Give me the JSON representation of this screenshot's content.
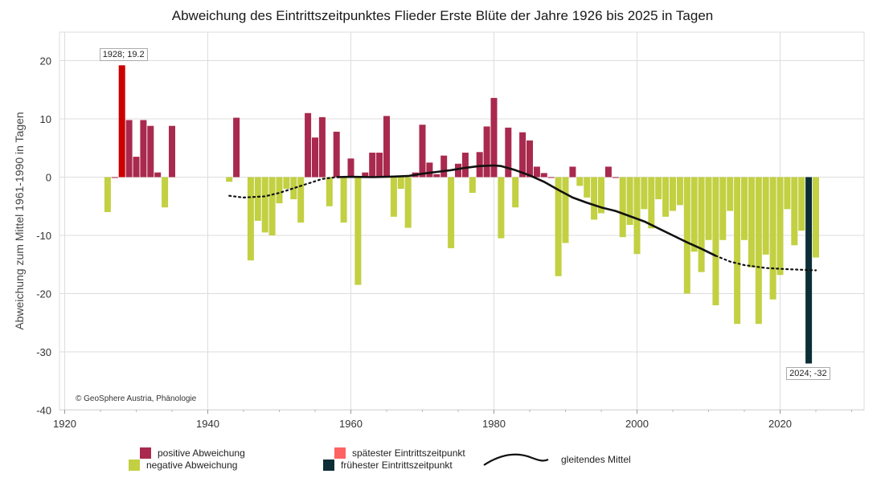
{
  "chart_data": {
    "type": "bar",
    "title": "Abweichung des Eintrittszeitpunktes Flieder Erste Blüte der Jahre 1926 bis 2025 in Tagen",
    "ylabel": "Abweichung zum Mittel 1961-1990 in Tagen",
    "xlabel": "",
    "xlim": [
      1920,
      2030
    ],
    "ylim": [
      -40,
      25
    ],
    "x_ticks": [
      "1920",
      "1940",
      "1960",
      "1980",
      "2000",
      "2020"
    ],
    "y_ticks": [
      "20",
      "10",
      "0",
      "-10",
      "-20",
      "-30",
      "-40"
    ],
    "grid": true,
    "bars": [
      [
        1926,
        -6
      ],
      [
        1927,
        0
      ],
      [
        1928,
        19.2
      ],
      [
        1929,
        9.8
      ],
      [
        1930,
        3.5
      ],
      [
        1931,
        9.8
      ],
      [
        1932,
        8.8
      ],
      [
        1933,
        0.8
      ],
      [
        1934,
        -5.2
      ],
      [
        1935,
        8.8
      ],
      [
        1943,
        -0.8
      ],
      [
        1944,
        10.2
      ],
      [
        1946,
        -14.3
      ],
      [
        1947,
        -7.5
      ],
      [
        1948,
        -9.5
      ],
      [
        1949,
        -10
      ],
      [
        1950,
        -4.5
      ],
      [
        1951,
        -2
      ],
      [
        1952,
        -3.8
      ],
      [
        1953,
        -7.8
      ],
      [
        1954,
        11
      ],
      [
        1955,
        6.8
      ],
      [
        1956,
        10.3
      ],
      [
        1957,
        -5
      ],
      [
        1958,
        7.8
      ],
      [
        1959,
        -7.8
      ],
      [
        1960,
        3.2
      ],
      [
        1961,
        -18.5
      ],
      [
        1962,
        0.8
      ],
      [
        1963,
        4.2
      ],
      [
        1964,
        4.2
      ],
      [
        1965,
        10.5
      ],
      [
        1966,
        -6.8
      ],
      [
        1967,
        -2
      ],
      [
        1968,
        -8.7
      ],
      [
        1969,
        0.8
      ],
      [
        1970,
        9
      ],
      [
        1971,
        2.5
      ],
      [
        1972,
        0.5
      ],
      [
        1973,
        3.7
      ],
      [
        1974,
        -12.2
      ],
      [
        1975,
        2.3
      ],
      [
        1976,
        4.2
      ],
      [
        1977,
        -2.7
      ],
      [
        1978,
        4.3
      ],
      [
        1979,
        8.7
      ],
      [
        1980,
        13.6
      ],
      [
        1981,
        -10.5
      ],
      [
        1982,
        8.5
      ],
      [
        1983,
        -5.2
      ],
      [
        1984,
        7.7
      ],
      [
        1985,
        6.3
      ],
      [
        1986,
        1.8
      ],
      [
        1987,
        0.7
      ],
      [
        1988,
        0
      ],
      [
        1989,
        -17
      ],
      [
        1990,
        -11.3
      ],
      [
        1991,
        1.8
      ],
      [
        1992,
        -1.5
      ],
      [
        1993,
        -3.5
      ],
      [
        1994,
        -7.3
      ],
      [
        1995,
        -6.2
      ],
      [
        1996,
        1.8
      ],
      [
        1997,
        0
      ],
      [
        1998,
        -10.3
      ],
      [
        1999,
        -8.2
      ],
      [
        2000,
        -13.2
      ],
      [
        2001,
        -5.5
      ],
      [
        2002,
        -8.8
      ],
      [
        2003,
        -3.8
      ],
      [
        2004,
        -6.8
      ],
      [
        2005,
        -5.8
      ],
      [
        2006,
        -4.8
      ],
      [
        2007,
        -20
      ],
      [
        2008,
        -12.8
      ],
      [
        2009,
        -16.3
      ],
      [
        2010,
        -10.8
      ],
      [
        2011,
        -22
      ],
      [
        2012,
        -10.8
      ],
      [
        2013,
        -5.8
      ],
      [
        2014,
        -25.2
      ],
      [
        2015,
        -10.8
      ],
      [
        2016,
        -15.5
      ],
      [
        2017,
        -25.2
      ],
      [
        2018,
        -13.3
      ],
      [
        2019,
        -21
      ],
      [
        2020,
        -16.8
      ],
      [
        2021,
        -5.5
      ],
      [
        2022,
        -11.7
      ],
      [
        2023,
        -9.2
      ],
      [
        2024,
        -32
      ],
      [
        2025,
        -13.8
      ]
    ],
    "moving_average": {
      "name": "gleitendes Mittel",
      "solid_from": 1958,
      "solid_to": 2011,
      "points": [
        [
          1943,
          -3.2
        ],
        [
          1945,
          -3.5
        ],
        [
          1948,
          -3.3
        ],
        [
          1950,
          -2.7
        ],
        [
          1953,
          -1.5
        ],
        [
          1956,
          -0.3
        ],
        [
          1958,
          0
        ],
        [
          1960,
          0.05
        ],
        [
          1963,
          0
        ],
        [
          1966,
          0.1
        ],
        [
          1968,
          0.2
        ],
        [
          1970,
          0.6
        ],
        [
          1972,
          0.9
        ],
        [
          1974,
          1.2
        ],
        [
          1976,
          1.6
        ],
        [
          1978,
          1.9
        ],
        [
          1980,
          2
        ],
        [
          1981,
          1.9
        ],
        [
          1983,
          1.2
        ],
        [
          1985,
          0.3
        ],
        [
          1987,
          -0.8
        ],
        [
          1989,
          -2.2
        ],
        [
          1991,
          -3.5
        ],
        [
          1993,
          -4.4
        ],
        [
          1995,
          -5.2
        ],
        [
          1997,
          -5.8
        ],
        [
          1999,
          -6.7
        ],
        [
          2001,
          -7.6
        ],
        [
          2003,
          -8.8
        ],
        [
          2005,
          -10
        ],
        [
          2007,
          -11.2
        ],
        [
          2009,
          -12.3
        ],
        [
          2011,
          -13.5
        ],
        [
          2013,
          -14.5
        ],
        [
          2015,
          -15.1
        ],
        [
          2018,
          -15.6
        ],
        [
          2021,
          -15.8
        ],
        [
          2023,
          -15.9
        ],
        [
          2025,
          -16
        ]
      ]
    },
    "annotations": [
      {
        "label": "1928; 19.2",
        "year": 1928,
        "value": 19.2
      },
      {
        "label": "2024; -32",
        "year": 2024,
        "value": -32
      }
    ],
    "latest_year": 1928,
    "earliest_year": 2024
  },
  "colors": {
    "positive": "#a92a4e",
    "negative": "#c2d042",
    "latest": "#cc0000",
    "earliest": "#0c2e36",
    "latest_swatch": "#ff6262",
    "average": "#111111",
    "grid": "#dddddd"
  },
  "legend": {
    "positive": "positive Abweichung",
    "negative": "negative Abweichung",
    "latest": "spätester Eintrittszeitpunkt",
    "earliest": "frühester Eintrittszeitpunkt",
    "average": "gleitendes Mittel"
  },
  "credit": "© GeoSphere Austria, Phänologie"
}
